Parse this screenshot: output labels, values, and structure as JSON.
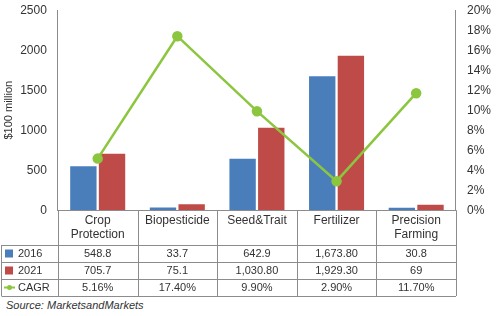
{
  "chart_data": {
    "type": "bar",
    "ylabel": "$100 million",
    "source": "Source: MarketsandMarkets",
    "categories": [
      "Crop Protection",
      "Biopesticide",
      "Seed&Trait",
      "Fertilizer",
      "Precision Farming"
    ],
    "series": [
      {
        "name": "2016",
        "type": "bar",
        "color": "#4a7ebb",
        "values": [
          548.8,
          33.7,
          642.9,
          1673.8,
          30.8
        ],
        "value_labels": [
          "548.8",
          "33.7",
          "642.9",
          "1,673.80",
          "30.8"
        ]
      },
      {
        "name": "2021",
        "type": "bar",
        "color": "#be4b48",
        "values": [
          705.7,
          75.1,
          1030.8,
          1929.3,
          69
        ],
        "value_labels": [
          "705.7",
          "75.1",
          "1,030.80",
          "1,929.30",
          "69"
        ]
      },
      {
        "name": "CAGR",
        "type": "line",
        "axis": "y2",
        "color": "#8cc63f",
        "marker": "circle",
        "values": [
          5.16,
          17.4,
          9.9,
          2.9,
          11.7
        ],
        "value_labels": [
          "5.16%",
          "17.40%",
          "9.90%",
          "2.90%",
          "11.70%"
        ]
      }
    ],
    "ylim": [
      0,
      2500
    ],
    "yticks": [
      0,
      500,
      1000,
      1500,
      2000,
      2500
    ],
    "y2lim": [
      0,
      20
    ],
    "y2ticks": [
      {
        "value": 0,
        "label": "0%"
      },
      {
        "value": 2,
        "label": "2%"
      },
      {
        "value": 4,
        "label": "4%"
      },
      {
        "value": 6,
        "label": "6%"
      },
      {
        "value": 8,
        "label": "8%"
      },
      {
        "value": 10,
        "label": "10%"
      },
      {
        "value": 12,
        "label": "12%"
      },
      {
        "value": 14,
        "label": "14%"
      },
      {
        "value": 16,
        "label": "16%"
      },
      {
        "value": 18,
        "label": "18%"
      },
      {
        "value": 20,
        "label": "20%"
      }
    ],
    "grid": false
  }
}
